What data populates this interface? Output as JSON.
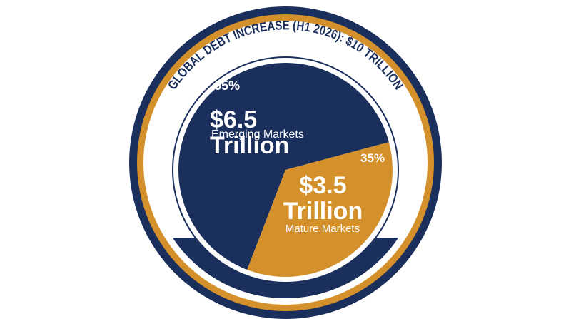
{
  "chart_data": {
    "type": "pie",
    "title": "GLOBAL DEBT INCREASE (H1 2026): $10 TRILLION",
    "categories": [
      "Emerging Markets",
      "Mature Markets"
    ],
    "values": [
      65,
      35
    ],
    "value_labels": [
      "65%",
      "35%"
    ],
    "amounts": [
      6.5,
      3.5
    ],
    "amount_labels": [
      "$6.5 Trillion",
      "$3.5 Trillion"
    ],
    "colors": [
      "#1b2f5c",
      "#d4912b"
    ]
  }
}
